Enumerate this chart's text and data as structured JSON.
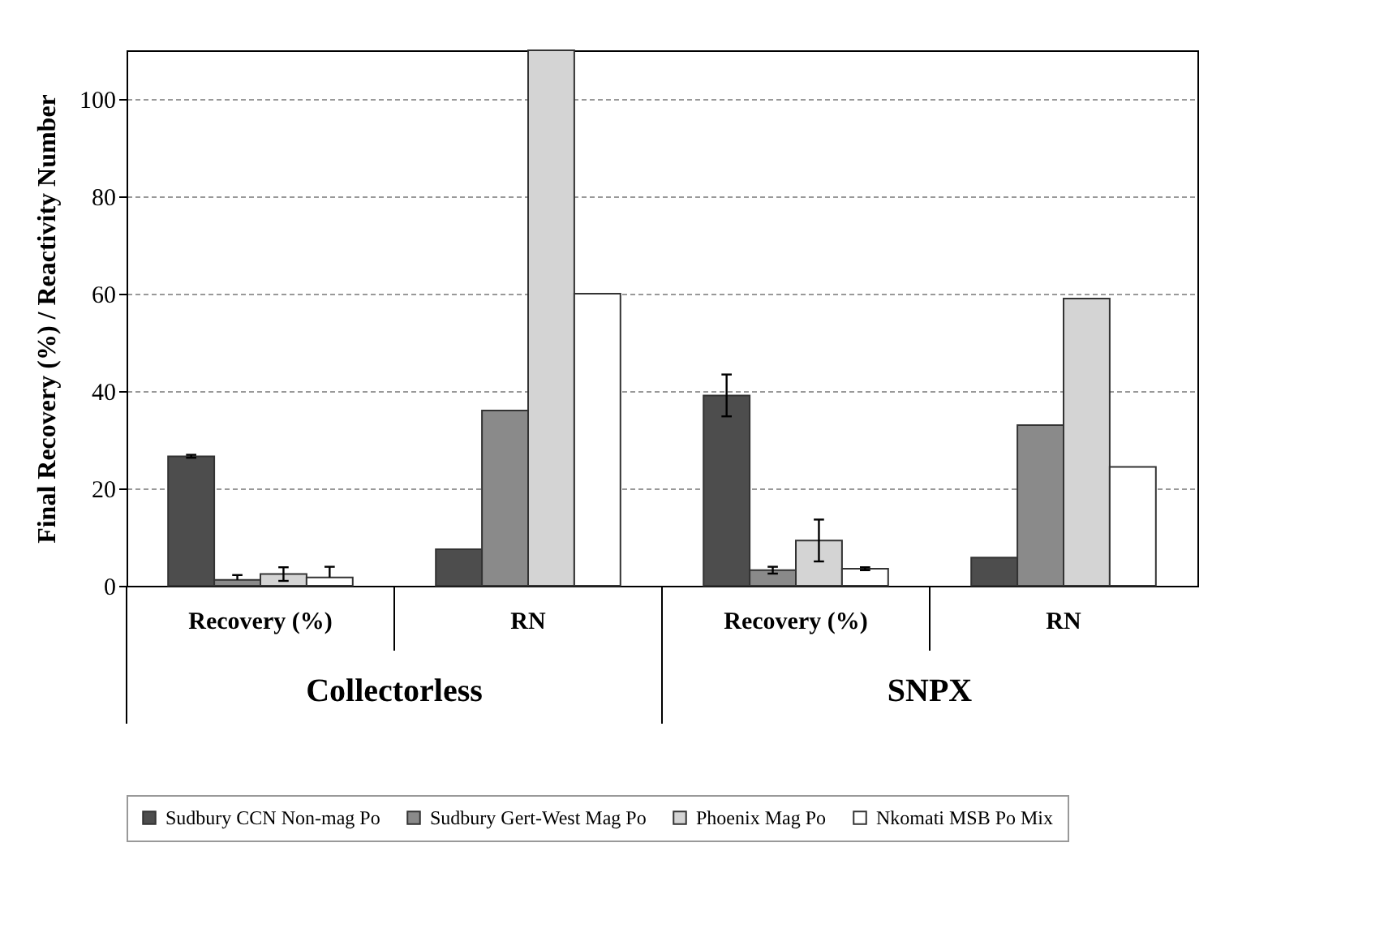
{
  "chart_data": {
    "type": "bar",
    "ylabel": "Final Recovery (%) / Reactivity Number",
    "categories": [
      "Recovery (%)",
      "RN",
      "Recovery (%)",
      "RN"
    ],
    "annotations": [
      "Collectorless",
      "SNPX"
    ],
    "series": [
      {
        "name": "Sudbury CCN Non-mag Po",
        "color": "#4d4d4d",
        "values": [
          26.6,
          7.5,
          39.1,
          5.8
        ],
        "errors": [
          0.3,
          null,
          4.3,
          null
        ]
      },
      {
        "name": "Sudbury Gert-West Mag Po",
        "color": "#8a8a8a",
        "values": [
          1.2,
          36,
          3.2,
          33
        ],
        "errors": [
          [
            1.2,
            2.2
          ],
          null,
          0.7,
          null
        ]
      },
      {
        "name": "Phoenix Mag Po",
        "color": "#d4d4d4",
        "values": [
          2.4,
          110,
          9.3,
          59
        ],
        "errors": [
          1.4,
          null,
          4.3,
          null
        ]
      },
      {
        "name": "Nkomati MSB Po Mix",
        "color": "#ffffff",
        "values": [
          1.7,
          60,
          3.5,
          24.4
        ],
        "errors": [
          [
            1.7,
            3.9
          ],
          null,
          0.3,
          null
        ]
      }
    ],
    "ylim": [
      0,
      110
    ],
    "yticks": [
      0,
      20,
      40,
      60,
      80,
      100
    ],
    "grid": "y",
    "legend": "bottom"
  }
}
